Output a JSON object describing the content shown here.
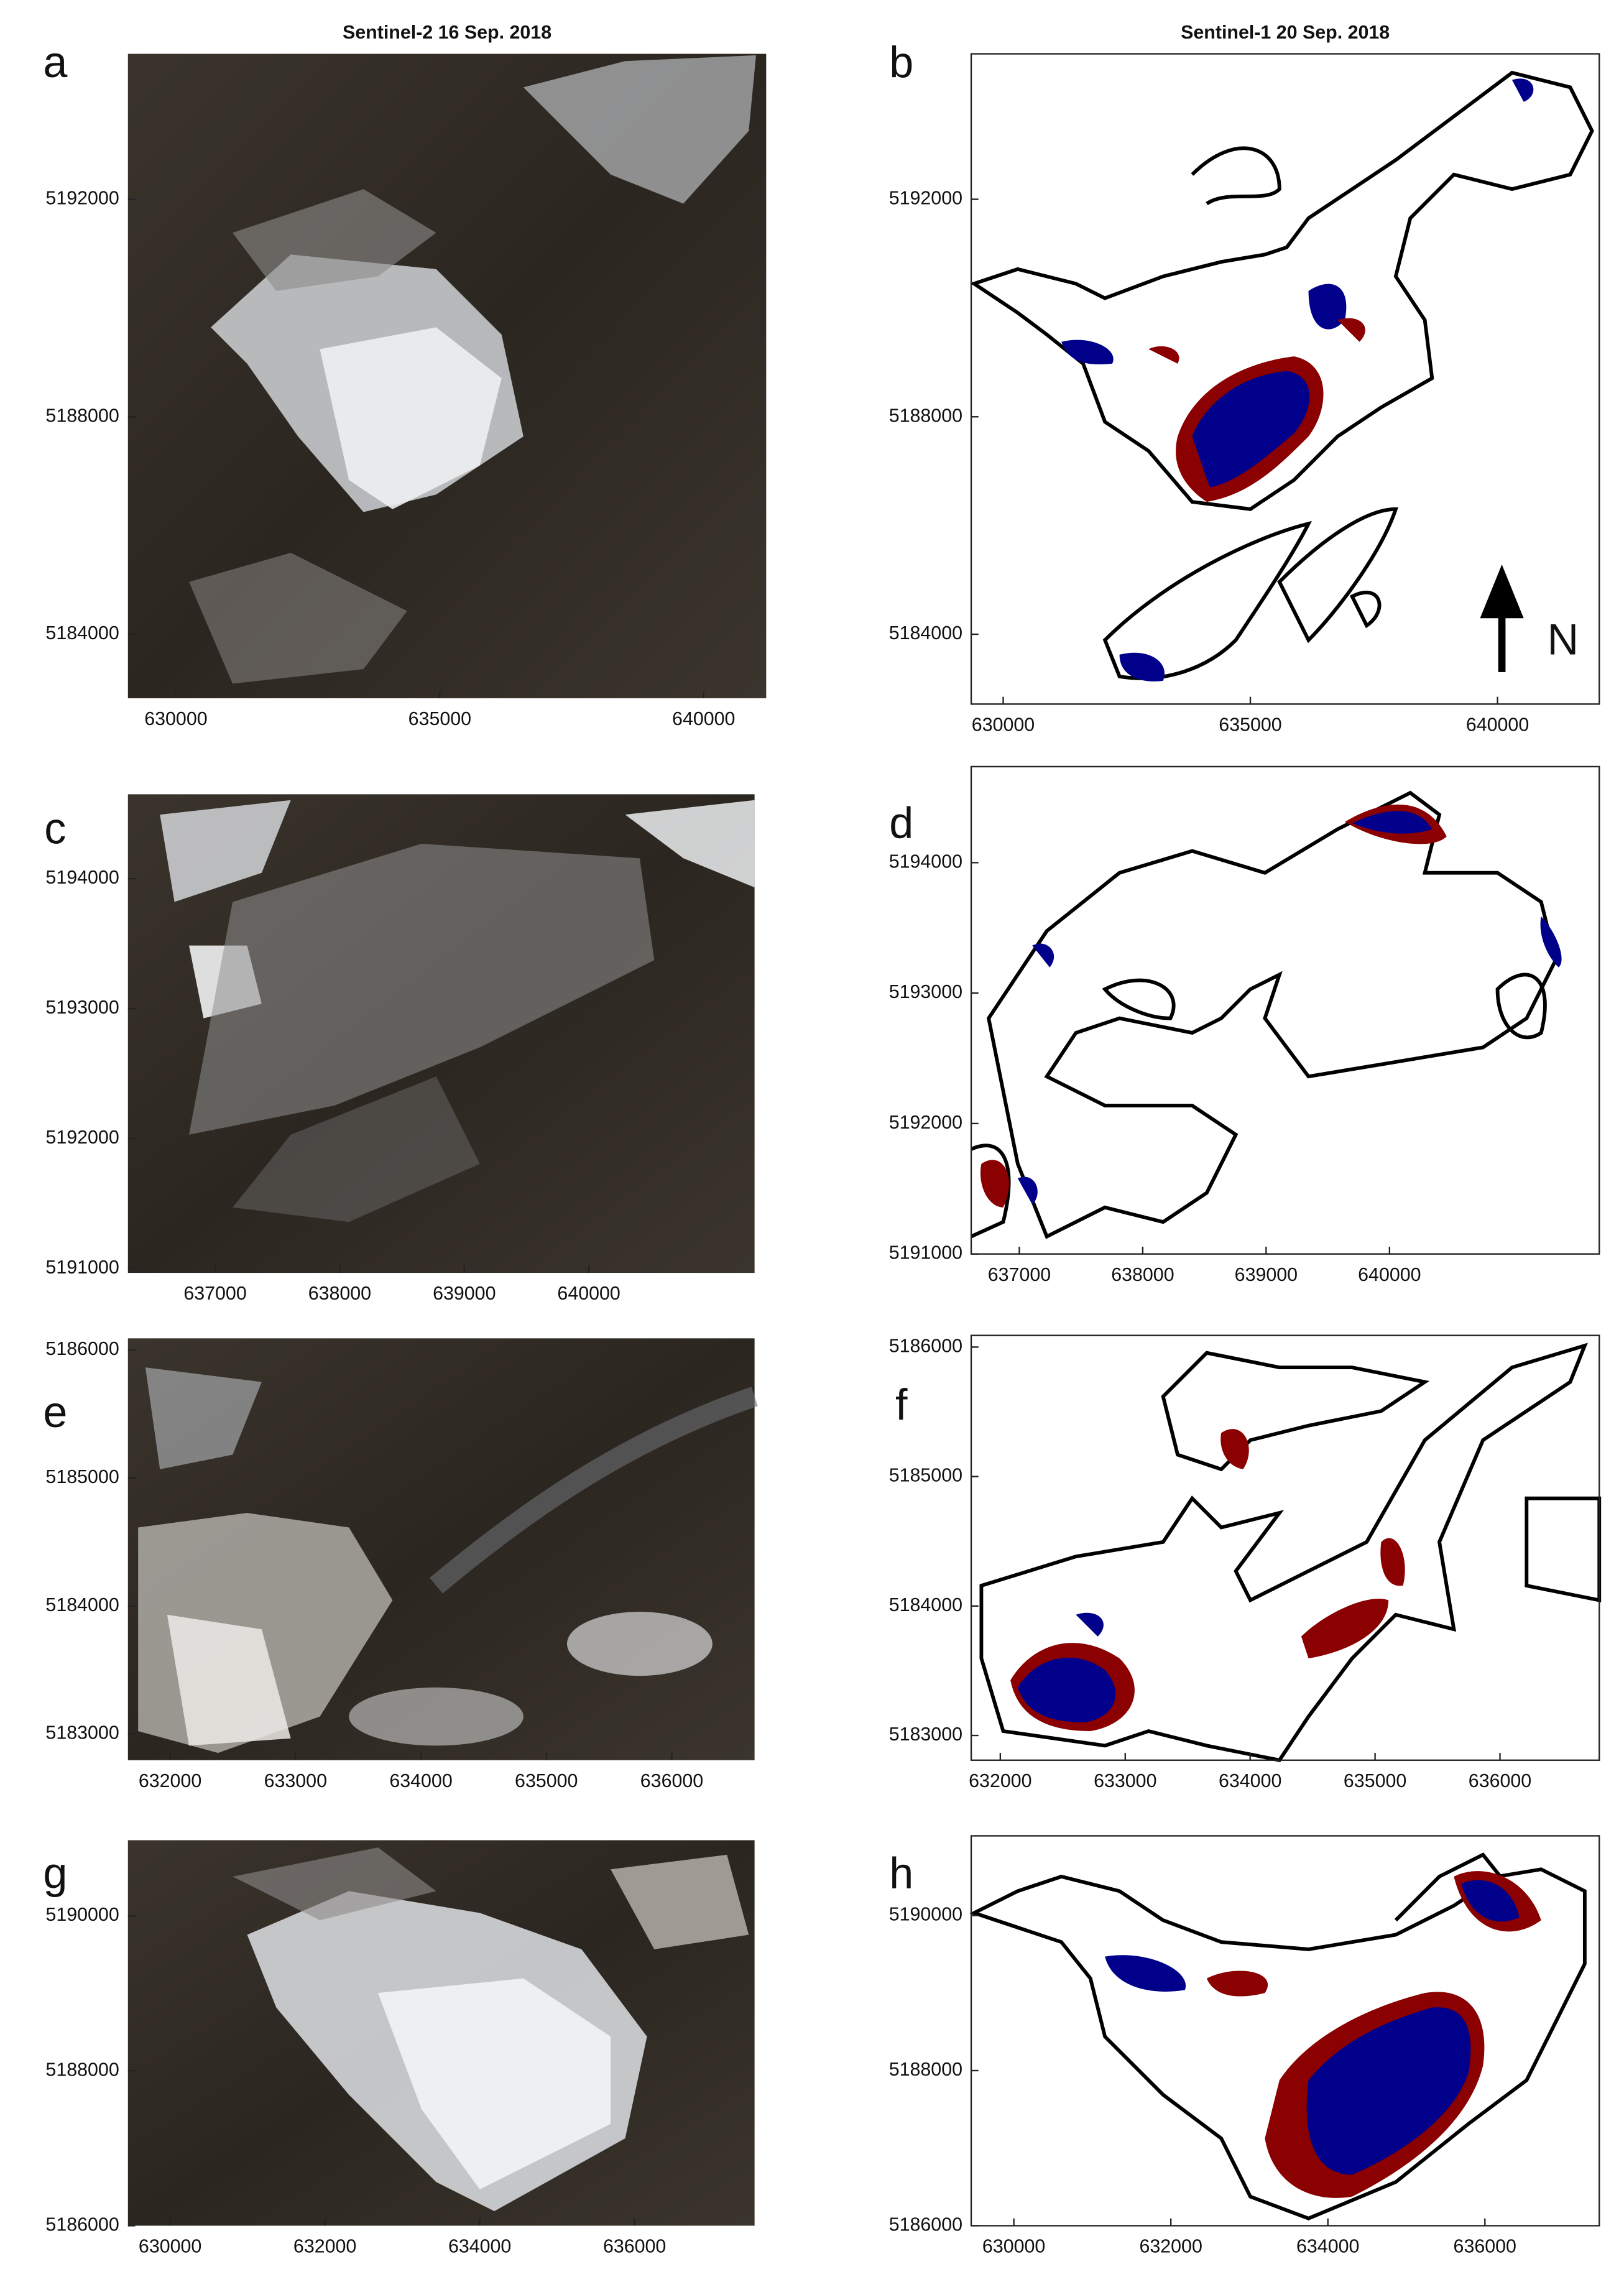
{
  "chart_data": [
    {
      "type": "image",
      "label": "a",
      "title": "Sentinel-2 16 Sep. 2018",
      "xlim": [
        629091,
        641185
      ],
      "ylim": [
        5182823,
        5194675
      ],
      "xticks": [
        630000,
        635000,
        640000
      ],
      "yticks": [
        5184000,
        5188000,
        5192000
      ]
    },
    {
      "type": "map",
      "label": "b",
      "title": "Sentinel-1 20 Sep. 2018",
      "annotation": "N",
      "xlim": [
        629353,
        642059
      ],
      "ylim": [
        5182716,
        5194675
      ],
      "xticks": [
        630000,
        635000,
        640000
      ],
      "yticks": [
        5184000,
        5188000,
        5192000
      ]
    },
    {
      "type": "image",
      "label": "c",
      "xlim": [
        636300,
        641330
      ],
      "ylim": [
        5190966,
        5194650
      ],
      "xticks": [
        637000,
        638000,
        639000,
        640000
      ],
      "yticks": [
        5191000,
        5192000,
        5193000,
        5194000
      ]
    },
    {
      "type": "map",
      "label": "d",
      "xlim": [
        636610,
        641700
      ],
      "ylim": [
        5191000,
        5194736
      ],
      "xticks": [
        637000,
        638000,
        639000,
        640000
      ],
      "yticks": [
        5191000,
        5192000,
        5193000,
        5194000
      ]
    },
    {
      "type": "image",
      "label": "e",
      "xlim": [
        631664,
        636660
      ],
      "ylim": [
        5182795,
        5186091
      ],
      "xticks": [
        632000,
        633000,
        634000,
        635000,
        636000
      ],
      "yticks": [
        5183000,
        5184000,
        5185000,
        5186000
      ]
    },
    {
      "type": "map",
      "label": "f",
      "xlim": [
        631767,
        636795
      ],
      "ylim": [
        5182809,
        5186090
      ],
      "xticks": [
        632000,
        633000,
        634000,
        635000,
        636000
      ],
      "yticks": [
        5183000,
        5184000,
        5185000,
        5186000
      ]
    },
    {
      "type": "image",
      "label": "g",
      "xlim": [
        629455,
        637550
      ],
      "ylim": [
        5186000,
        5190977
      ],
      "xticks": [
        630000,
        632000,
        634000,
        636000
      ],
      "yticks": [
        5186000,
        5188000,
        5190000
      ]
    },
    {
      "type": "map",
      "label": "h",
      "xlim": [
        629457,
        637457
      ],
      "ylim": [
        5186000,
        5191027
      ],
      "xticks": [
        630000,
        632000,
        634000,
        636000
      ],
      "yticks": [
        5186000,
        5188000,
        5190000
      ]
    }
  ]
}
